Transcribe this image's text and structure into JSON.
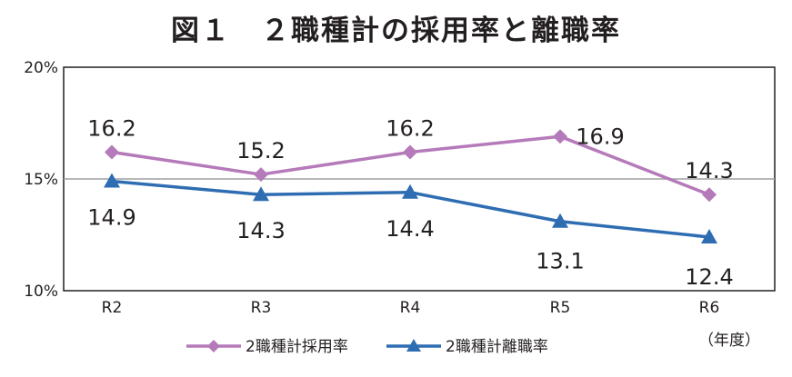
{
  "chart_data": {
    "type": "line",
    "title": "図１　２職種計の採用率と離職率",
    "categories": [
      "R2",
      "R3",
      "R4",
      "R5",
      "R6"
    ],
    "x_unit": "（年度）",
    "y_ticks": [
      "20%",
      "15%",
      "10%"
    ],
    "ylim": [
      10,
      20
    ],
    "grid": "15% reference line only",
    "legend_position": "bottom-center",
    "series": [
      {
        "name": "2職種計採用率",
        "values": [
          16.2,
          15.2,
          16.2,
          16.9,
          14.3
        ],
        "labels": [
          "16.2",
          "15.2",
          "16.2",
          "16.9",
          "14.3"
        ],
        "color": "#b57ab9",
        "marker": "diamond"
      },
      {
        "name": "2職種計離職率",
        "values": [
          14.9,
          14.3,
          14.4,
          13.1,
          12.4
        ],
        "labels": [
          "14.9",
          "14.3",
          "14.4",
          "13.1",
          "12.4"
        ],
        "color": "#2f6db3",
        "marker": "triangle"
      }
    ]
  }
}
